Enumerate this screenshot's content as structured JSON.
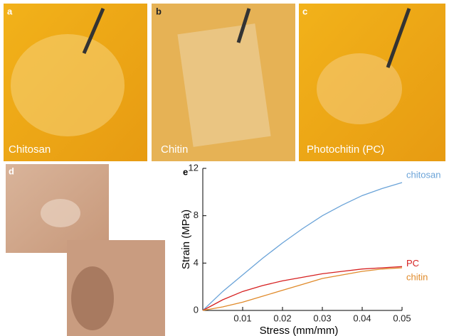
{
  "panels": [
    {
      "label": "a",
      "caption": "Chitosan"
    },
    {
      "label": "b",
      "caption": "Chitin"
    },
    {
      "label": "c",
      "caption": "Photochitin (PC)"
    },
    {
      "label": "d"
    },
    {
      "label": "e"
    }
  ],
  "chart_data": {
    "type": "line",
    "x_label": "Stress (mm/mm)",
    "y_label": "Strain (MPa)",
    "x": [
      0,
      0.005,
      0.01,
      0.015,
      0.02,
      0.025,
      0.03,
      0.035,
      0.04,
      0.045,
      0.05
    ],
    "series": [
      {
        "name": "chitosan",
        "color": "#6aa3d8",
        "values": [
          0,
          1.6,
          3.0,
          4.4,
          5.7,
          6.9,
          8.0,
          8.9,
          9.7,
          10.3,
          10.8
        ]
      },
      {
        "name": "PC",
        "color": "#d62020",
        "values": [
          0,
          0.9,
          1.6,
          2.1,
          2.5,
          2.8,
          3.1,
          3.3,
          3.5,
          3.6,
          3.7
        ]
      },
      {
        "name": "chitin",
        "color": "#e08a2a",
        "values": [
          0,
          0.3,
          0.7,
          1.2,
          1.7,
          2.2,
          2.7,
          3.0,
          3.3,
          3.5,
          3.6
        ]
      }
    ],
    "xlim": [
      0,
      0.05
    ],
    "xticks": [
      0.01,
      0.02,
      0.03,
      0.04,
      0.05
    ],
    "ylim": [
      0,
      12
    ],
    "yticks": [
      0,
      4,
      8,
      12
    ]
  }
}
